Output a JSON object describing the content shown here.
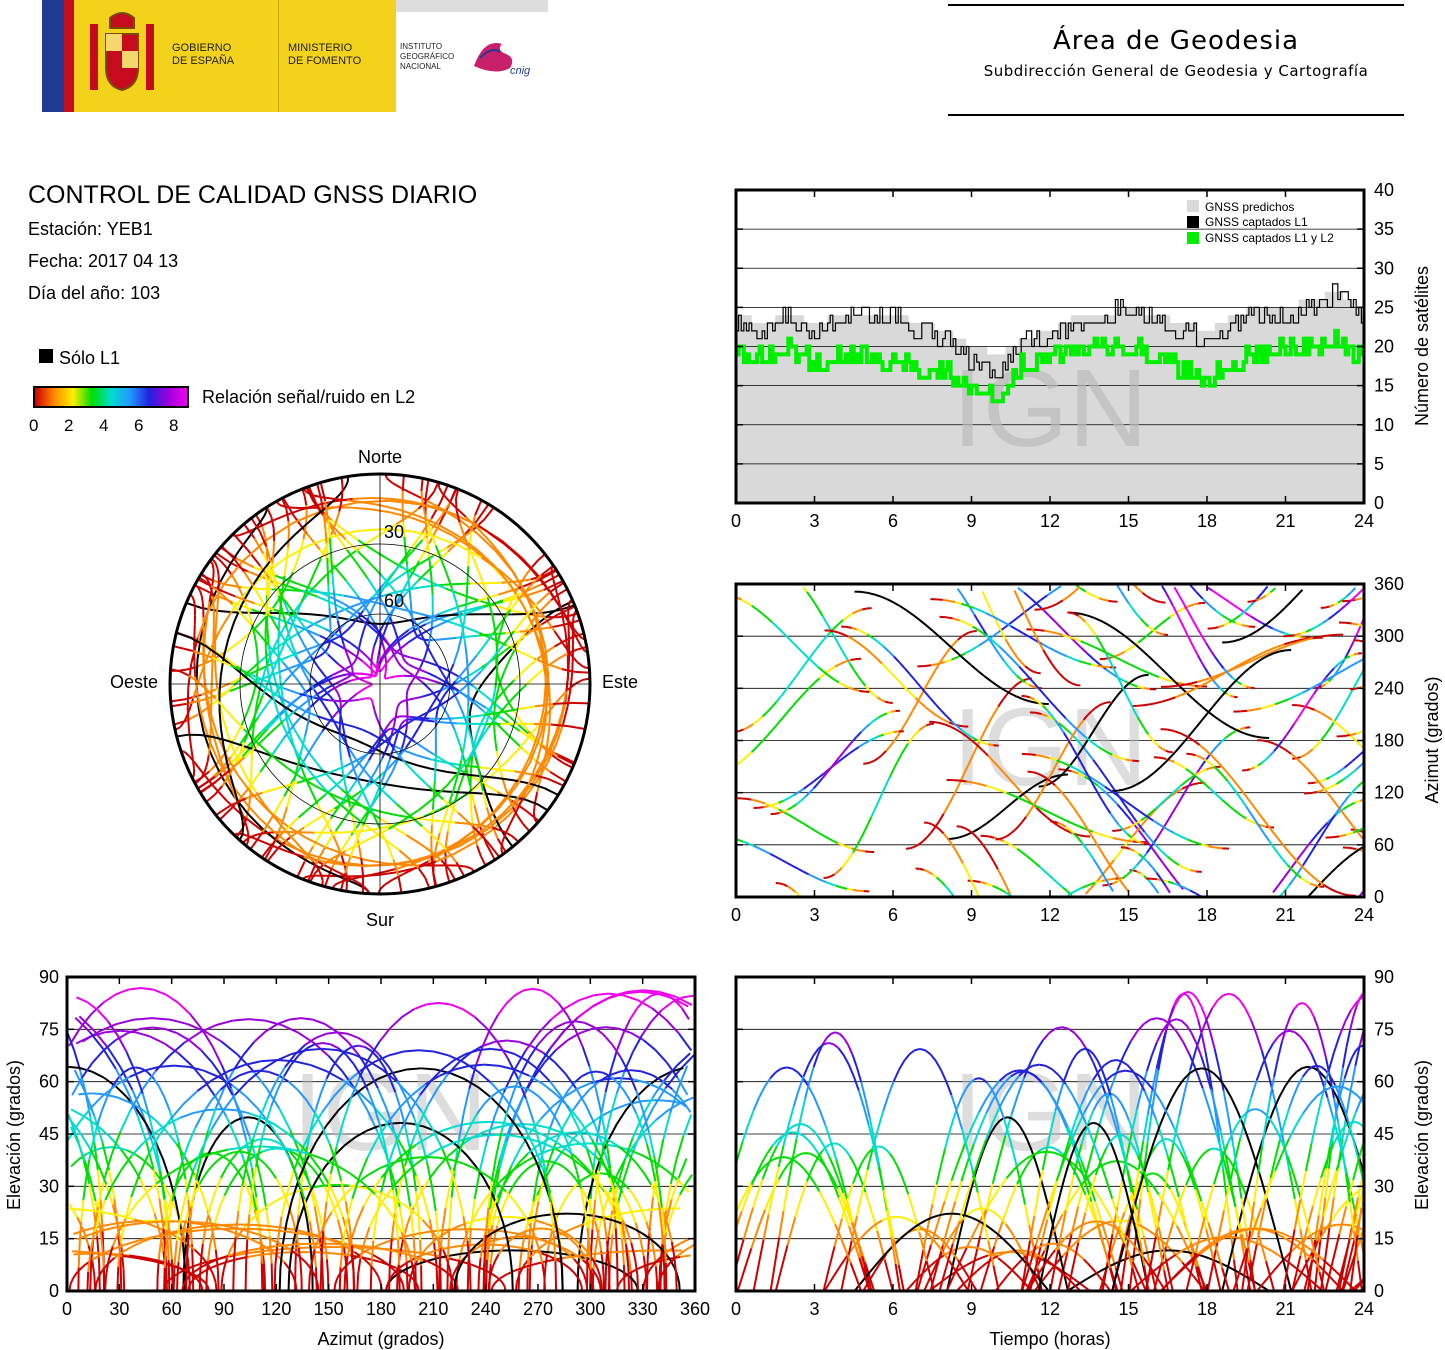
{
  "header": {
    "gov_line1": "GOBIERNO",
    "gov_line2": "DE ESPAÑA",
    "min_line1": "MINISTERIO",
    "min_line2": "DE FOMENTO",
    "inst_line1": "INSTITUTO",
    "inst_line2": "GEOGRÁFICO",
    "inst_line3": "NACIONAL",
    "cnig_logo_text": "cnig",
    "title": "Área de Geodesia",
    "subtitle": "Subdirección General de Geodesia y Cartografía"
  },
  "info": {
    "title": "CONTROL DE CALIDAD GNSS DIARIO",
    "station": "Estación: YEB1",
    "date": "Fecha: 2017 04 13",
    "doy": "Día del año: 103"
  },
  "legend": {
    "solo_l1": "Sólo L1",
    "snr_label": "Relación señal/ruido en L2",
    "snr_ticks": [
      "0",
      "2",
      "4",
      "6",
      "8"
    ]
  },
  "watermark": "IGN",
  "colors": {
    "predicted": "#d9d9d9",
    "captured_l1": "#000000",
    "captured_l1_l2": "#00ee00",
    "snr_scale": [
      "#cc0000",
      "#ff8800",
      "#ffee00",
      "#00dd00",
      "#00ddcc",
      "#2299ff",
      "#2222dd",
      "#9900dd",
      "#ee00ee"
    ]
  },
  "chart_data": [
    {
      "type": "line",
      "name": "satellite-count",
      "ylabel": "Número de satélites",
      "xlim": [
        0,
        24
      ],
      "ylim": [
        0,
        40
      ],
      "xticks": [
        "0",
        "3",
        "6",
        "9",
        "12",
        "15",
        "18",
        "21",
        "24"
      ],
      "yticks": [
        "0",
        "5",
        "10",
        "15",
        "20",
        "25",
        "30",
        "35",
        "40"
      ],
      "grid": true,
      "legend_position": "top-right",
      "x": [
        0,
        1,
        2,
        3,
        4,
        5,
        6,
        7,
        8,
        9,
        10,
        11,
        12,
        13,
        14,
        15,
        16,
        17,
        18,
        19,
        20,
        21,
        22,
        23,
        24
      ],
      "series": [
        {
          "name": "GNSS predichos",
          "values": [
            24,
            23,
            24,
            23,
            24,
            24,
            24,
            23,
            22,
            20,
            19,
            21,
            22,
            24,
            24,
            25,
            24,
            23,
            22,
            24,
            25,
            25,
            26,
            27,
            24
          ]
        },
        {
          "name": "GNSS captados L1",
          "values": [
            23,
            22,
            24,
            22,
            24,
            24,
            24,
            22,
            21,
            18,
            17,
            21,
            21,
            23,
            24,
            25,
            24,
            22,
            21,
            23,
            24,
            24,
            25,
            27,
            23
          ]
        },
        {
          "name": "GNSS captados L1 y L2",
          "values": [
            19,
            19,
            20,
            18,
            19,
            19,
            18,
            17,
            17,
            15,
            14,
            18,
            19,
            20,
            20,
            20,
            19,
            17,
            16,
            18,
            19,
            20,
            20,
            21,
            18
          ]
        }
      ]
    },
    {
      "type": "scatter",
      "name": "azimuth-vs-time",
      "ylabel": "Azimut (grados)",
      "xlim": [
        0,
        24
      ],
      "ylim": [
        0,
        360
      ],
      "xticks": [
        "0",
        "3",
        "6",
        "9",
        "12",
        "15",
        "18",
        "21",
        "24"
      ],
      "yticks": [
        "0",
        "60",
        "120",
        "180",
        "240",
        "300",
        "360"
      ],
      "grid": true,
      "color_by": "Relación señal/ruido en L2"
    },
    {
      "type": "scatter",
      "name": "elevation-vs-azimuth",
      "xlabel": "Azimut (grados)",
      "ylabel": "Elevación (grados)",
      "xlim": [
        0,
        360
      ],
      "ylim": [
        0,
        90
      ],
      "xticks": [
        "0",
        "30",
        "60",
        "90",
        "120",
        "150",
        "180",
        "210",
        "240",
        "270",
        "300",
        "330",
        "360"
      ],
      "yticks": [
        "0",
        "15",
        "30",
        "45",
        "60",
        "75",
        "90"
      ],
      "grid": true
    },
    {
      "type": "scatter",
      "name": "elevation-vs-time",
      "xlabel": "Tiempo (horas)",
      "ylabel": "Elevación (grados)",
      "xlim": [
        0,
        24
      ],
      "ylim": [
        0,
        90
      ],
      "xticks": [
        "0",
        "3",
        "6",
        "9",
        "12",
        "15",
        "18",
        "21",
        "24"
      ],
      "yticks": [
        "0",
        "15",
        "30",
        "45",
        "60",
        "75",
        "90"
      ],
      "grid": true
    },
    {
      "type": "scatter",
      "name": "skyplot",
      "directions": {
        "north": "Norte",
        "south": "Sur",
        "east": "Este",
        "west": "Oeste"
      },
      "elevation_rings": [
        "30",
        "60"
      ]
    }
  ]
}
